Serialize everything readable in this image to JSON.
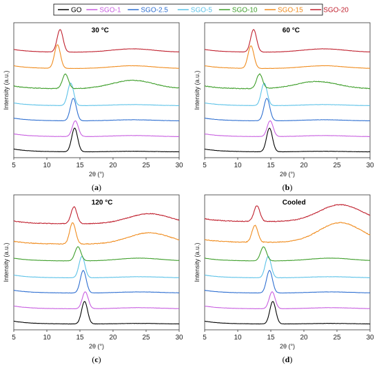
{
  "legend": {
    "entries": [
      {
        "name": "GO",
        "color": "#000000"
      },
      {
        "name": "SGO-1",
        "color": "#c85ee0"
      },
      {
        "name": "SGO-2.5",
        "color": "#2e6fd1"
      },
      {
        "name": "SGO-5",
        "color": "#5cc2e8"
      },
      {
        "name": "SGO-10",
        "color": "#3e9e2a"
      },
      {
        "name": "SGO-15",
        "color": "#f08c1e"
      },
      {
        "name": "SGO-20",
        "color": "#c0202e"
      }
    ]
  },
  "chart_data": [
    {
      "type": "line",
      "title": "30 °C",
      "caption": "a",
      "xlabel": "2θ (°)",
      "ylabel": "Intensity (a.u.)",
      "xlim": [
        5,
        30
      ],
      "xticks": [
        "5",
        "10",
        "15",
        "20",
        "25",
        "30"
      ],
      "series": [
        {
          "name": "GO",
          "peak": 14.2,
          "peak_height": 0.42,
          "broad_center": 23,
          "broad_height": 0.01,
          "offset": 0.0
        },
        {
          "name": "SGO-1",
          "peak": 14.3,
          "peak_height": 0.28,
          "broad_center": 23,
          "broad_height": 0.02,
          "offset": 0.27
        },
        {
          "name": "SGO-2.5",
          "peak": 14.0,
          "peak_height": 0.4,
          "broad_center": 23,
          "broad_height": 0.02,
          "offset": 0.55
        },
        {
          "name": "SGO-5",
          "peak": 13.6,
          "peak_height": 0.4,
          "broad_center": 23,
          "broad_height": 0.02,
          "offset": 0.82
        },
        {
          "name": "SGO-10",
          "peak": 12.8,
          "peak_height": 0.26,
          "broad_center": 23,
          "broad_height": 0.15,
          "offset": 1.12
        },
        {
          "name": "SGO-15",
          "peak": 11.6,
          "peak_height": 0.42,
          "broad_center": 23,
          "broad_height": 0.05,
          "offset": 1.48
        },
        {
          "name": "SGO-20",
          "peak": 12.0,
          "peak_height": 0.4,
          "broad_center": 23,
          "broad_height": 0.06,
          "offset": 1.77
        }
      ]
    },
    {
      "type": "line",
      "title": "60 °C",
      "caption": "b",
      "xlabel": "2θ (°)",
      "ylabel": "Intensity (a.u.)",
      "xlim": [
        5,
        30
      ],
      "xticks": [
        "5",
        "10",
        "15",
        "20",
        "25",
        "30"
      ],
      "series": [
        {
          "name": "GO",
          "peak": 14.8,
          "peak_height": 0.42,
          "broad_center": 23,
          "broad_height": 0.01,
          "offset": 0.0
        },
        {
          "name": "SGO-1",
          "peak": 14.9,
          "peak_height": 0.28,
          "broad_center": 23,
          "broad_height": 0.02,
          "offset": 0.27
        },
        {
          "name": "SGO-2.5",
          "peak": 14.4,
          "peak_height": 0.4,
          "broad_center": 23,
          "broad_height": 0.02,
          "offset": 0.55
        },
        {
          "name": "SGO-5",
          "peak": 14.0,
          "peak_height": 0.4,
          "broad_center": 23,
          "broad_height": 0.02,
          "offset": 0.82
        },
        {
          "name": "SGO-10",
          "peak": 13.3,
          "peak_height": 0.26,
          "broad_center": 22,
          "broad_height": 0.13,
          "offset": 1.12
        },
        {
          "name": "SGO-15",
          "peak": 12.0,
          "peak_height": 0.4,
          "broad_center": 23,
          "broad_height": 0.05,
          "offset": 1.48
        },
        {
          "name": "SGO-20",
          "peak": 12.4,
          "peak_height": 0.4,
          "broad_center": 23,
          "broad_height": 0.06,
          "offset": 1.77
        }
      ]
    },
    {
      "type": "line",
      "title": "120 °C",
      "caption": "c",
      "xlabel": "2θ (°)",
      "ylabel": "Intensity (a.u.)",
      "xlim": [
        5,
        30
      ],
      "xticks": [
        "5",
        "10",
        "15",
        "20",
        "25",
        "30"
      ],
      "series": [
        {
          "name": "GO",
          "peak": 15.7,
          "peak_height": 0.4,
          "broad_center": 24,
          "broad_height": 0.01,
          "offset": 0.0
        },
        {
          "name": "SGO-1",
          "peak": 15.8,
          "peak_height": 0.3,
          "broad_center": 24,
          "broad_height": 0.02,
          "offset": 0.27
        },
        {
          "name": "SGO-2.5",
          "peak": 15.5,
          "peak_height": 0.4,
          "broad_center": 24,
          "broad_height": 0.02,
          "offset": 0.55
        },
        {
          "name": "SGO-5",
          "peak": 15.3,
          "peak_height": 0.38,
          "broad_center": 24,
          "broad_height": 0.02,
          "offset": 0.82
        },
        {
          "name": "SGO-10",
          "peak": 14.7,
          "peak_height": 0.25,
          "broad_center": 24,
          "broad_height": 0.05,
          "offset": 1.12
        },
        {
          "name": "SGO-15",
          "peak": 13.9,
          "peak_height": 0.38,
          "broad_center": 25.5,
          "broad_height": 0.2,
          "offset": 1.42
        },
        {
          "name": "SGO-20",
          "peak": 14.1,
          "peak_height": 0.3,
          "broad_center": 25.5,
          "broad_height": 0.18,
          "offset": 1.78
        }
      ]
    },
    {
      "type": "line",
      "title": "Cooled",
      "caption": "d",
      "xlabel": "2θ (°)",
      "ylabel": "Intensity (a.u.)",
      "xlim": [
        5,
        30
      ],
      "xticks": [
        "5",
        "10",
        "15",
        "20",
        "25",
        "30"
      ],
      "series": [
        {
          "name": "GO",
          "peak": 15.3,
          "peak_height": 0.4,
          "broad_center": 24,
          "broad_height": 0.01,
          "offset": 0.0
        },
        {
          "name": "SGO-1",
          "peak": 15.2,
          "peak_height": 0.3,
          "broad_center": 24,
          "broad_height": 0.02,
          "offset": 0.27
        },
        {
          "name": "SGO-2.5",
          "peak": 14.8,
          "peak_height": 0.4,
          "broad_center": 24,
          "broad_height": 0.02,
          "offset": 0.55
        },
        {
          "name": "SGO-5",
          "peak": 14.6,
          "peak_height": 0.38,
          "broad_center": 24,
          "broad_height": 0.02,
          "offset": 0.82
        },
        {
          "name": "SGO-10",
          "peak": 13.9,
          "peak_height": 0.25,
          "broad_center": 24,
          "broad_height": 0.05,
          "offset": 1.12
        },
        {
          "name": "SGO-15",
          "peak": 12.6,
          "peak_height": 0.3,
          "broad_center": 25.5,
          "broad_height": 0.35,
          "offset": 1.45
        },
        {
          "name": "SGO-20",
          "peak": 12.9,
          "peak_height": 0.28,
          "broad_center": 25.5,
          "broad_height": 0.3,
          "offset": 1.82
        }
      ]
    }
  ]
}
